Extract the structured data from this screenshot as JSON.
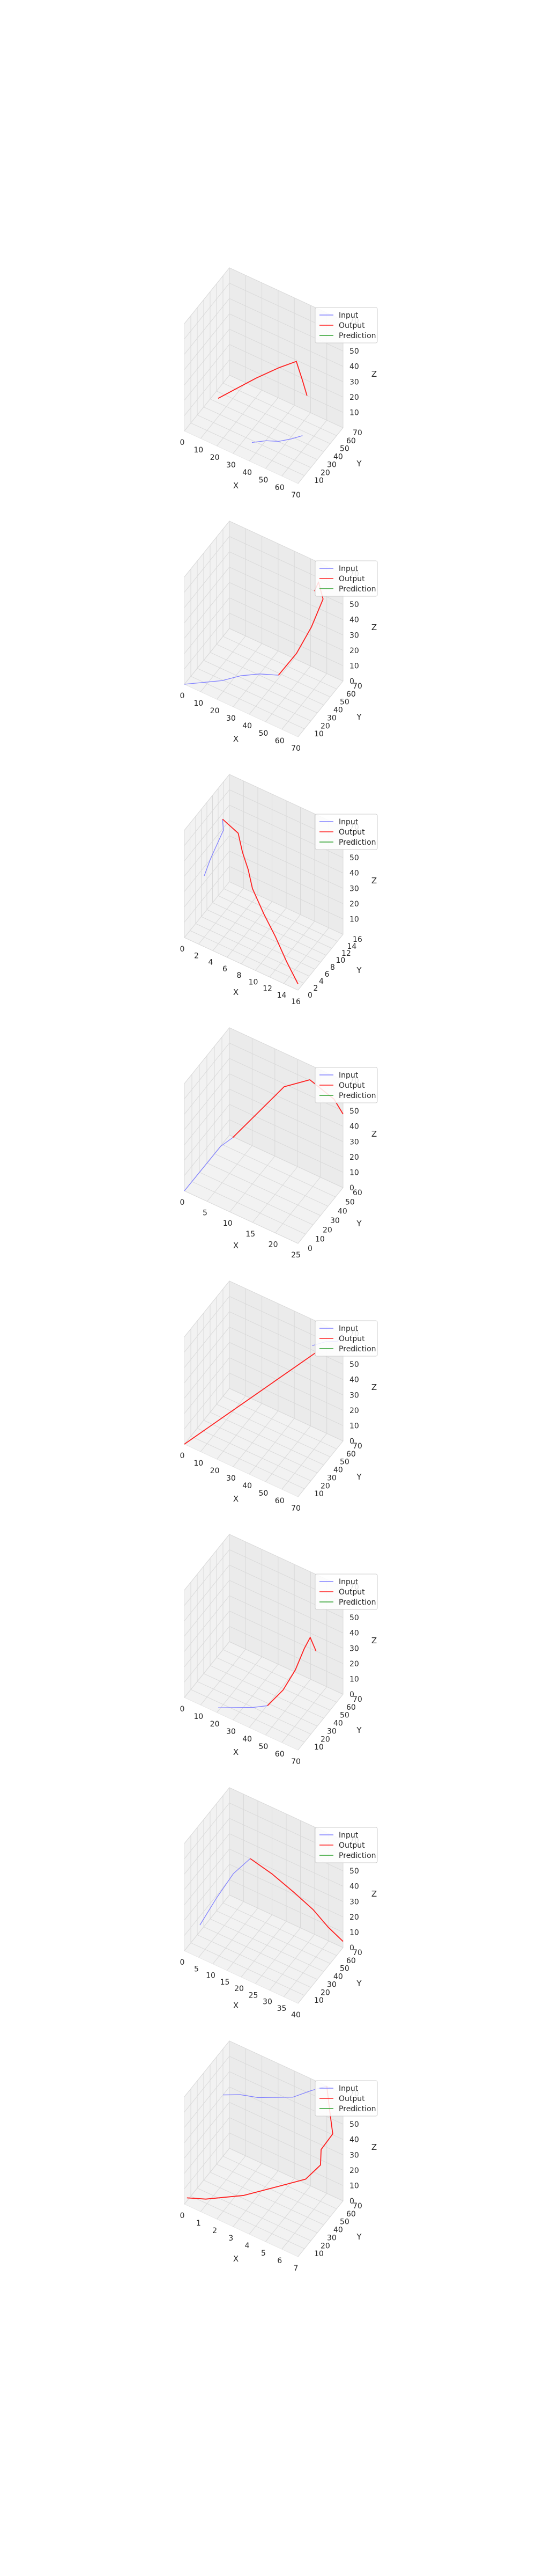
{
  "legend": {
    "input": "Input",
    "output": "Output",
    "prediction": "Prediction"
  },
  "colors": {
    "input": "#8080ff",
    "output": "#ff2020",
    "prediction": "#2ca02c",
    "pane": "#f2f2f2",
    "grid": "#d9d9d9"
  },
  "chart_data": [
    {
      "type": "line3d",
      "xlabel": "X",
      "ylabel": "Y",
      "zlabel": "Z",
      "xlim": [
        0,
        70
      ],
      "ylim": [
        0,
        70
      ],
      "zlim": [
        0,
        70
      ],
      "xticks": [
        0,
        10,
        20,
        30,
        40,
        50,
        60,
        70
      ],
      "yticks": [
        10,
        20,
        30,
        40,
        50,
        60,
        70
      ],
      "zticks": [
        10,
        20,
        30,
        40,
        50,
        60,
        70
      ],
      "series": [
        {
          "name": "Input",
          "x": [
            40,
            48,
            55,
            62,
            68
          ],
          "y": [
            4,
            6,
            8,
            10,
            12
          ],
          "z": [
            10,
            14,
            16,
            20,
            24
          ]
        },
        {
          "name": "Output",
          "x": [
            20,
            30,
            42,
            55,
            65,
            68,
            70
          ],
          "y": [
            2,
            4,
            6,
            8,
            10,
            12,
            14
          ],
          "z": [
            30,
            40,
            52,
            64,
            72,
            60,
            50
          ]
        }
      ]
    },
    {
      "type": "line3d",
      "xlabel": "X",
      "ylabel": "Y",
      "zlabel": "Z",
      "xlim": [
        0,
        70
      ],
      "ylim": [
        0,
        70
      ],
      "zlim": [
        0,
        70
      ],
      "xticks": [
        0,
        10,
        20,
        30,
        40,
        50,
        60,
        70
      ],
      "yticks": [
        10,
        20,
        30,
        40,
        50,
        60,
        70
      ],
      "zticks": [
        0,
        10,
        20,
        30,
        40,
        50,
        60,
        70
      ],
      "series": [
        {
          "name": "Input",
          "x": [
            0,
            10,
            20,
            30,
            40,
            50
          ],
          "y": [
            0,
            4,
            8,
            12,
            16,
            20
          ],
          "z": [
            0,
            4,
            8,
            14,
            18,
            20
          ]
        },
        {
          "name": "Output",
          "x": [
            50,
            58,
            64,
            68,
            62,
            58
          ],
          "y": [
            20,
            28,
            36,
            44,
            52,
            56
          ],
          "z": [
            20,
            34,
            50,
            66,
            70,
            60
          ]
        }
      ]
    },
    {
      "type": "line3d",
      "xlabel": "X",
      "ylabel": "Y",
      "zlabel": "Z",
      "xlim": [
        0,
        16
      ],
      "ylim": [
        0,
        16
      ],
      "zlim": [
        0,
        70
      ],
      "xticks": [
        0,
        2,
        4,
        6,
        8,
        10,
        12,
        14,
        16
      ],
      "yticks": [
        0,
        2,
        4,
        6,
        8,
        10,
        12,
        14,
        16
      ],
      "zticks": [
        10,
        20,
        30,
        40,
        50,
        60,
        70
      ],
      "series": [
        {
          "name": "Input",
          "x": [
            2,
            2.5,
            3,
            3.5,
            3
          ],
          "y": [
            2,
            3,
            4,
            5,
            6
          ],
          "z": [
            40,
            50,
            58,
            66,
            70
          ]
        },
        {
          "name": "Output",
          "x": [
            3,
            5,
            6,
            7,
            8,
            10,
            12,
            14,
            16
          ],
          "y": [
            6,
            6.5,
            5.5,
            5,
            4,
            3,
            2,
            1,
            0
          ],
          "z": [
            70,
            64,
            56,
            48,
            40,
            30,
            22,
            12,
            4
          ]
        }
      ]
    },
    {
      "type": "line3d",
      "xlabel": "X",
      "ylabel": "Y",
      "zlabel": "Z",
      "xlim": [
        0,
        25
      ],
      "ylim": [
        0,
        60
      ],
      "zlim": [
        0,
        70
      ],
      "xticks": [
        0,
        5,
        10,
        15,
        20,
        25
      ],
      "yticks": [
        0,
        10,
        20,
        30,
        40,
        50,
        60
      ],
      "zticks": [
        0,
        10,
        20,
        30,
        40,
        50,
        60,
        70
      ],
      "series": [
        {
          "name": "Input",
          "x": [
            0,
            2,
            4,
            6,
            8
          ],
          "y": [
            0,
            4,
            8,
            12,
            16
          ],
          "z": [
            0,
            10,
            20,
            30,
            36
          ]
        },
        {
          "name": "Output",
          "x": [
            8,
            12,
            16,
            20,
            24,
            25
          ],
          "y": [
            16,
            26,
            36,
            46,
            54,
            60
          ],
          "z": [
            36,
            52,
            68,
            72,
            60,
            48
          ]
        }
      ]
    },
    {
      "type": "line3d",
      "xlabel": "X",
      "ylabel": "Y",
      "zlabel": "Z",
      "xlim": [
        0,
        70
      ],
      "ylim": [
        0,
        70
      ],
      "zlim": [
        0,
        70
      ],
      "xticks": [
        0,
        10,
        20,
        30,
        40,
        50,
        60,
        70
      ],
      "yticks": [
        10,
        20,
        30,
        40,
        50,
        60,
        70
      ],
      "zticks": [
        0,
        10,
        20,
        30,
        40,
        50,
        60,
        70
      ],
      "series": [
        {
          "name": "Input",
          "x": [
            55,
            62,
            68,
            70
          ],
          "y": [
            60,
            64,
            66,
            70
          ],
          "z": [
            60,
            64,
            66,
            70
          ]
        },
        {
          "name": "Output",
          "x": [
            0,
            10,
            20,
            30,
            40,
            50,
            58
          ],
          "y": [
            0,
            10,
            20,
            30,
            40,
            50,
            58
          ],
          "z": [
            0,
            10,
            20,
            30,
            40,
            50,
            58
          ]
        }
      ]
    },
    {
      "type": "line3d",
      "xlabel": "X",
      "ylabel": "Y",
      "zlabel": "Z",
      "xlim": [
        0,
        70
      ],
      "ylim": [
        0,
        70
      ],
      "zlim": [
        0,
        70
      ],
      "xticks": [
        0,
        10,
        20,
        30,
        40,
        50,
        60,
        70
      ],
      "yticks": [
        10,
        20,
        30,
        40,
        50,
        60,
        70
      ],
      "zticks": [
        0,
        10,
        20,
        30,
        40,
        50,
        60,
        70
      ],
      "series": [
        {
          "name": "Input",
          "x": [
            20,
            30,
            40,
            48
          ],
          "y": [
            2,
            4,
            6,
            8
          ],
          "z": [
            2,
            6,
            10,
            14
          ]
        },
        {
          "name": "Output",
          "x": [
            48,
            56,
            62,
            66,
            68,
            70
          ],
          "y": [
            8,
            12,
            16,
            20,
            24,
            28
          ],
          "z": [
            14,
            26,
            40,
            54,
            60,
            50
          ]
        }
      ]
    },
    {
      "type": "line3d",
      "xlabel": "X",
      "ylabel": "Y",
      "zlabel": "Z",
      "xlim": [
        0,
        40
      ],
      "ylim": [
        0,
        70
      ],
      "zlim": [
        0,
        70
      ],
      "xticks": [
        0,
        5,
        10,
        15,
        20,
        25,
        30,
        35,
        40
      ],
      "yticks": [
        10,
        20,
        30,
        40,
        50,
        60,
        70
      ],
      "zticks": [
        0,
        10,
        20,
        30,
        40,
        50,
        60,
        70
      ],
      "series": [
        {
          "name": "Input",
          "x": [
            5,
            10,
            15,
            20
          ],
          "y": [
            2,
            6,
            10,
            14
          ],
          "z": [
            20,
            40,
            58,
            70
          ]
        },
        {
          "name": "Output",
          "x": [
            20,
            25,
            30,
            34,
            37,
            40
          ],
          "y": [
            14,
            26,
            38,
            50,
            60,
            70
          ],
          "z": [
            70,
            58,
            44,
            30,
            16,
            4
          ]
        }
      ]
    },
    {
      "type": "line3d",
      "xlabel": "X",
      "ylabel": "Y",
      "zlabel": "Z",
      "xlim": [
        0,
        7
      ],
      "ylim": [
        0,
        70
      ],
      "zlim": [
        0,
        70
      ],
      "xticks": [
        0,
        1,
        2,
        3,
        4,
        5,
        6,
        7
      ],
      "yticks": [
        10,
        20,
        30,
        40,
        50,
        60,
        70
      ],
      "zticks": [
        0,
        10,
        20,
        30,
        40,
        50,
        60,
        70
      ],
      "series": [
        {
          "name": "Input",
          "x": [
            0,
            1,
            2,
            3,
            4,
            5,
            6
          ],
          "y": [
            60,
            62,
            64,
            66,
            68,
            70,
            70
          ],
          "z": [
            40,
            44,
            46,
            50,
            54,
            62,
            70
          ]
        },
        {
          "name": "Output",
          "x": [
            6,
            6.5,
            7,
            6.6,
            6.8,
            6.2,
            5,
            4,
            3,
            2,
            1,
            0
          ],
          "y": [
            70,
            62,
            54,
            46,
            40,
            32,
            24,
            20,
            16,
            12,
            8,
            4
          ],
          "z": [
            70,
            60,
            52,
            44,
            38,
            30,
            24,
            18,
            12,
            8,
            4,
            2
          ]
        }
      ]
    }
  ]
}
